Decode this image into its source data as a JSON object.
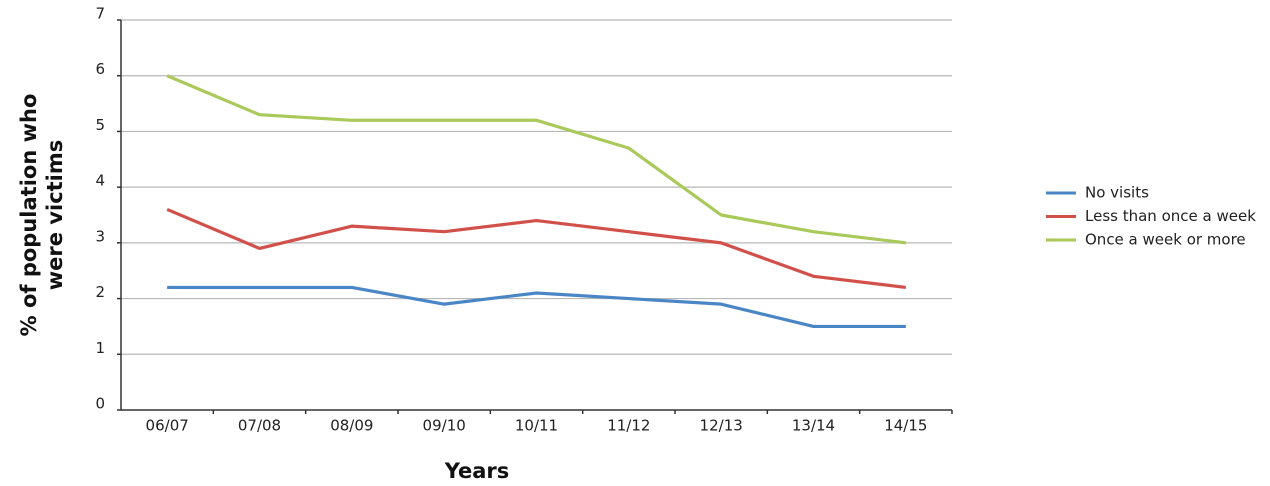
{
  "chart_data": {
    "type": "line",
    "ylabel": [
      "% of population who",
      "were victims"
    ],
    "xlabel": "Years",
    "categories": [
      "06/07",
      "07/08",
      "08/09",
      "09/10",
      "10/11",
      "11/12",
      "12/13",
      "13/14",
      "14/15"
    ],
    "series": [
      {
        "name": "No visits",
        "color": "#4a86c5",
        "values": [
          2.2,
          2.2,
          2.2,
          1.9,
          2.1,
          2.0,
          1.9,
          1.5,
          1.5
        ]
      },
      {
        "name": "Less than once a week",
        "color": "#d2504a",
        "values": [
          3.6,
          2.9,
          3.3,
          3.2,
          3.4,
          3.2,
          3.0,
          2.4,
          2.2
        ]
      },
      {
        "name": "Once a week or more",
        "color": "#a9c95a",
        "values": [
          6.0,
          5.3,
          5.2,
          5.2,
          5.2,
          4.7,
          3.5,
          3.2,
          3.0
        ]
      }
    ],
    "ylim": [
      0,
      7
    ],
    "yticks": [
      0,
      1,
      2,
      3,
      4,
      5,
      6,
      7
    ],
    "grid": true,
    "legend": "right"
  }
}
